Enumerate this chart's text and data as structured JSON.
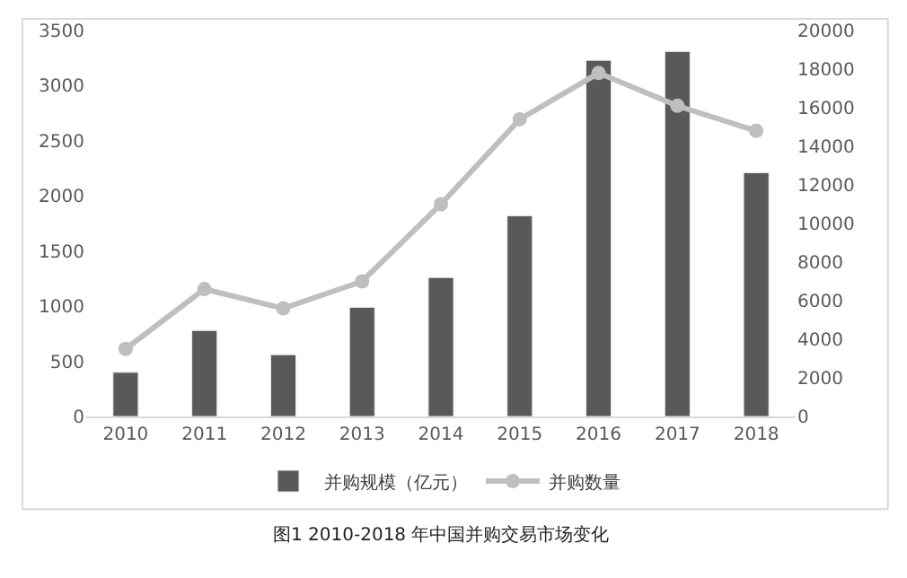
{
  "chart_data": {
    "type": "bar",
    "categories": [
      "2010",
      "2011",
      "2012",
      "2013",
      "2014",
      "2015",
      "2016",
      "2017",
      "2018"
    ],
    "series": [
      {
        "name": "并购规模（亿元）",
        "color": "#595959",
        "values": [
          400,
          780,
          560,
          990,
          1260,
          1820,
          3230,
          3310,
          2210
        ]
      },
      {
        "name": "并购数量",
        "type": "line",
        "axis": "y2",
        "color": "#bfbfbf",
        "marker": "circle",
        "values": [
          3500,
          6600,
          5600,
          7000,
          11000,
          15400,
          17800,
          16100,
          14800
        ]
      }
    ],
    "ylim": [
      0,
      3500
    ],
    "yticks": [
      0,
      500,
      1000,
      1500,
      2000,
      2500,
      3000,
      3500
    ],
    "y2lim": [
      0,
      20000
    ],
    "y2ticks": [
      0,
      2000,
      4000,
      6000,
      8000,
      10000,
      12000,
      14000,
      16000,
      18000,
      20000
    ],
    "legend": "bottom",
    "annotations": [
      "图1 2010-2018 年中国并购交易市场变化"
    ]
  }
}
